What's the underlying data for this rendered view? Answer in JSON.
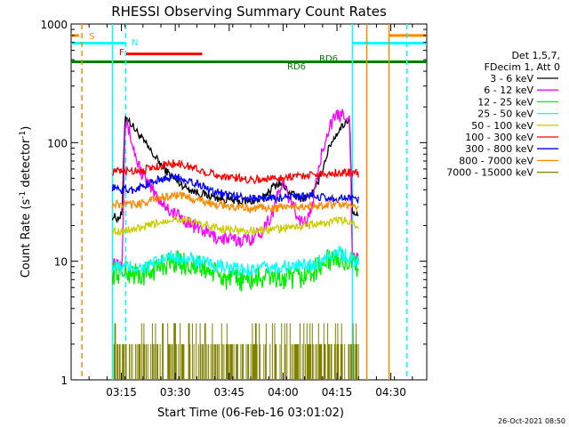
{
  "chart_data": {
    "type": "line",
    "title": "RHESSI Observing Summary Count Rates",
    "xlabel": "Start Time (06-Feb-16 03:01:02)",
    "ylabel_main": "Count Rate (s",
    "ylabel_sup1": "-1",
    "ylabel_mid": " detector",
    "ylabel_sup2": "-1",
    "ylabel_end": ")",
    "y_scale": "log",
    "ylim": [
      1,
      1000
    ],
    "xlim_minutes": [
      0,
      99
    ],
    "x_ticks": [
      {
        "minute": 14,
        "label": "03:15"
      },
      {
        "minute": 29,
        "label": "03:30"
      },
      {
        "minute": 44,
        "label": "03:45"
      },
      {
        "minute": 59,
        "label": "04:00"
      },
      {
        "minute": 74,
        "label": "04:15"
      },
      {
        "minute": 89,
        "label": "04:30"
      }
    ],
    "y_ticks": [
      {
        "value": 1,
        "label": "1"
      },
      {
        "value": 10,
        "label": "10"
      },
      {
        "value": 100,
        "label": "100"
      },
      {
        "value": 1000,
        "label": "1000"
      }
    ],
    "timestamp": "26-Oct-2021 08:50",
    "legend": {
      "placement": "right",
      "header": [
        "Det 1,5,7,",
        "FDecim 1, Att 0"
      ]
    },
    "series": [
      {
        "name": "3 - 6 keV",
        "color": "#000000",
        "points": [
          [
            11.5,
            24
          ],
          [
            13,
            23
          ],
          [
            14.2,
            25
          ],
          [
            15,
            170
          ],
          [
            17,
            140
          ],
          [
            20,
            105
          ],
          [
            23,
            78
          ],
          [
            26,
            60
          ],
          [
            29,
            48
          ],
          [
            32,
            42
          ],
          [
            35,
            38
          ],
          [
            38,
            36
          ],
          [
            41,
            34
          ],
          [
            44,
            33
          ],
          [
            47,
            32
          ],
          [
            50,
            32
          ],
          [
            53,
            33
          ],
          [
            56,
            42
          ],
          [
            58,
            46
          ],
          [
            60,
            40
          ],
          [
            62,
            36
          ],
          [
            64,
            34
          ],
          [
            66,
            35
          ],
          [
            68,
            40
          ],
          [
            70,
            60
          ],
          [
            72,
            95
          ],
          [
            74,
            120
          ],
          [
            76,
            145
          ],
          [
            77.5,
            160
          ],
          [
            78.3,
            25
          ],
          [
            80,
            24
          ]
        ]
      },
      {
        "name": "6 - 12 keV",
        "color": "#ff00ff",
        "points": [
          [
            11.5,
            10
          ],
          [
            14.2,
            10
          ],
          [
            15,
            150
          ],
          [
            16,
            130
          ],
          [
            18,
            75
          ],
          [
            20,
            52
          ],
          [
            22,
            42
          ],
          [
            25,
            32
          ],
          [
            28,
            26
          ],
          [
            31,
            23
          ],
          [
            34,
            20
          ],
          [
            37,
            18
          ],
          [
            40,
            16
          ],
          [
            43,
            15.5
          ],
          [
            46,
            15
          ],
          [
            50,
            15.5
          ],
          [
            53,
            18
          ],
          [
            56,
            25
          ],
          [
            58,
            40
          ],
          [
            59,
            45
          ],
          [
            60,
            38
          ],
          [
            62,
            28
          ],
          [
            64,
            22
          ],
          [
            66,
            22
          ],
          [
            68,
            40
          ],
          [
            70,
            90
          ],
          [
            72,
            140
          ],
          [
            74,
            165
          ],
          [
            76,
            175
          ],
          [
            77.5,
            170
          ],
          [
            78.3,
            11
          ],
          [
            80,
            10
          ]
        ]
      },
      {
        "name": "12 - 25 keV",
        "color": "#00ee00",
        "points": [
          [
            11.5,
            8
          ],
          [
            14,
            8
          ],
          [
            17,
            8
          ],
          [
            20,
            7.5
          ],
          [
            23,
            8.5
          ],
          [
            26,
            9.5
          ],
          [
            29,
            10
          ],
          [
            32,
            9.5
          ],
          [
            35,
            9
          ],
          [
            38,
            8.5
          ],
          [
            41,
            7.5
          ],
          [
            44,
            7
          ],
          [
            47,
            7
          ],
          [
            50,
            7
          ],
          [
            53,
            7.2
          ],
          [
            56,
            7.5
          ],
          [
            59,
            7
          ],
          [
            62,
            7
          ],
          [
            65,
            7.5
          ],
          [
            68,
            8.5
          ],
          [
            71,
            10
          ],
          [
            74,
            10.5
          ],
          [
            77,
            10
          ],
          [
            80,
            9
          ]
        ]
      },
      {
        "name": "25 - 50 keV",
        "color": "#00ffff",
        "points": [
          [
            11.5,
            9
          ],
          [
            14,
            8.8
          ],
          [
            17,
            9
          ],
          [
            20,
            8.8
          ],
          [
            23,
            9.5
          ],
          [
            26,
            10.5
          ],
          [
            29,
            11
          ],
          [
            32,
            10.5
          ],
          [
            35,
            10
          ],
          [
            38,
            9.5
          ],
          [
            41,
            9
          ],
          [
            44,
            8.6
          ],
          [
            47,
            8.5
          ],
          [
            50,
            8.5
          ],
          [
            53,
            8.6
          ],
          [
            56,
            8.8
          ],
          [
            59,
            9
          ],
          [
            62,
            9
          ],
          [
            65,
            9.2
          ],
          [
            68,
            9.5
          ],
          [
            71,
            11
          ],
          [
            74,
            12
          ],
          [
            77,
            11
          ],
          [
            80,
            10
          ]
        ]
      },
      {
        "name": "50 - 100 keV",
        "color": "#cccc00",
        "points": [
          [
            11.5,
            18
          ],
          [
            14,
            18
          ],
          [
            17,
            18.5
          ],
          [
            20,
            19
          ],
          [
            23,
            20.5
          ],
          [
            26,
            22
          ],
          [
            29,
            23
          ],
          [
            32,
            22
          ],
          [
            35,
            21
          ],
          [
            38,
            20
          ],
          [
            41,
            19
          ],
          [
            44,
            18.5
          ],
          [
            47,
            18
          ],
          [
            50,
            18
          ],
          [
            53,
            18.2
          ],
          [
            56,
            18.5
          ],
          [
            59,
            19
          ],
          [
            62,
            19.5
          ],
          [
            65,
            20
          ],
          [
            68,
            20.5
          ],
          [
            71,
            21
          ],
          [
            74,
            22
          ],
          [
            77,
            22
          ],
          [
            80,
            20
          ]
        ]
      },
      {
        "name": "100 - 300 keV",
        "color": "#ff0000",
        "points": [
          [
            11.5,
            57
          ],
          [
            14,
            57
          ],
          [
            17,
            58
          ],
          [
            20,
            59
          ],
          [
            23,
            62
          ],
          [
            26,
            65
          ],
          [
            29,
            67
          ],
          [
            32,
            64
          ],
          [
            35,
            60
          ],
          [
            38,
            56
          ],
          [
            41,
            53
          ],
          [
            44,
            51
          ],
          [
            47,
            50
          ],
          [
            50,
            49
          ],
          [
            53,
            49
          ],
          [
            56,
            50
          ],
          [
            59,
            51
          ],
          [
            62,
            52
          ],
          [
            65,
            53
          ],
          [
            68,
            54
          ],
          [
            71,
            55
          ],
          [
            74,
            56
          ],
          [
            77,
            56
          ],
          [
            80,
            55
          ]
        ]
      },
      {
        "name": "300 - 800 keV",
        "color": "#0000ff",
        "points": [
          [
            11.5,
            42
          ],
          [
            14,
            40
          ],
          [
            17,
            40
          ],
          [
            20,
            43
          ],
          [
            23,
            47
          ],
          [
            26,
            50
          ],
          [
            29,
            51
          ],
          [
            32,
            49
          ],
          [
            35,
            45
          ],
          [
            38,
            41
          ],
          [
            41,
            38
          ],
          [
            44,
            36
          ],
          [
            47,
            35
          ],
          [
            50,
            34
          ],
          [
            53,
            34
          ],
          [
            56,
            34
          ],
          [
            59,
            34.5
          ],
          [
            62,
            35
          ],
          [
            65,
            35
          ],
          [
            68,
            35
          ],
          [
            71,
            34
          ],
          [
            74,
            34
          ],
          [
            77,
            34
          ],
          [
            80,
            33
          ]
        ]
      },
      {
        "name": "800 - 7000 keV",
        "color": "#ff8800",
        "points": [
          [
            11.5,
            30
          ],
          [
            14,
            30
          ],
          [
            17,
            30
          ],
          [
            20,
            31
          ],
          [
            23,
            33
          ],
          [
            26,
            35
          ],
          [
            29,
            36
          ],
          [
            32,
            35
          ],
          [
            35,
            33
          ],
          [
            38,
            31
          ],
          [
            41,
            30
          ],
          [
            44,
            29
          ],
          [
            47,
            28
          ],
          [
            50,
            28
          ],
          [
            53,
            28
          ],
          [
            56,
            28
          ],
          [
            59,
            28.5
          ],
          [
            62,
            29
          ],
          [
            65,
            29
          ],
          [
            68,
            29.5
          ],
          [
            71,
            30
          ],
          [
            74,
            30
          ],
          [
            77,
            29
          ],
          [
            80,
            28
          ]
        ]
      },
      {
        "name": "7000 - 15000 keV",
        "color": "#808000",
        "points": [
          [
            11.5,
            1.5
          ],
          [
            80,
            1.5
          ]
        ]
      }
    ],
    "annotations": [
      {
        "label": "S",
        "color": "#ff8800"
      },
      {
        "label": "N",
        "color": "#00ffff"
      },
      {
        "label": "F",
        "color": "#ff0000"
      },
      {
        "label": "RD6",
        "color": "#008000"
      },
      {
        "label": "RD6",
        "color": "#008000"
      }
    ],
    "bars": [
      {
        "name": "S",
        "color": "#ff8800",
        "y": 800,
        "segments": [
          [
            0,
            2.2
          ],
          [
            88.5,
            99
          ]
        ]
      },
      {
        "name": "N",
        "color": "#00ffff",
        "y": 690,
        "segments": [
          [
            0,
            15.2
          ],
          [
            78.3,
            99
          ]
        ]
      },
      {
        "name": "F",
        "color": "#ff0000",
        "y": 560,
        "segments": [
          [
            15.2,
            36.5
          ]
        ]
      },
      {
        "name": "RD6",
        "color": "#008000",
        "y": 480,
        "segments": [
          [
            0,
            99
          ]
        ]
      }
    ],
    "vlines": [
      {
        "minute": 3,
        "color": "#ff8800",
        "style": "dashed"
      },
      {
        "minute": 11.5,
        "color": "#00ffff",
        "style": "solid"
      },
      {
        "minute": 15.2,
        "color": "#00ffff",
        "style": "dashed"
      },
      {
        "minute": 78.3,
        "color": "#00ffff",
        "style": "solid"
      },
      {
        "minute": 82.3,
        "color": "#ff8800",
        "style": "solid"
      },
      {
        "minute": 88.5,
        "color": "#ff8800",
        "style": "solid"
      },
      {
        "minute": 93.5,
        "color": "#00ffff",
        "style": "dashed"
      }
    ]
  }
}
